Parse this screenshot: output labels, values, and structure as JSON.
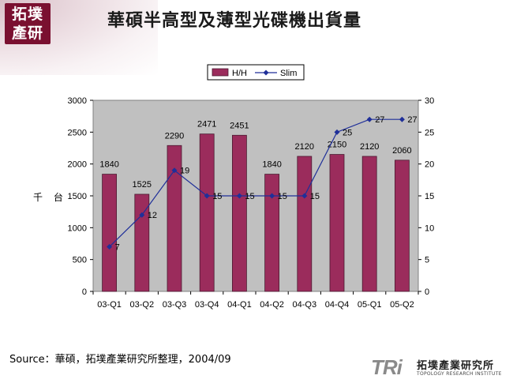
{
  "logo": {
    "line1": "拓墣",
    "line2": "產研"
  },
  "title": "華碩半高型及薄型光碟機出貨量",
  "footer": {
    "source": "Source：華碩，拓墣產業研究所整理，2004/09",
    "brand_mark": "TRi",
    "brand_cn": "拓墣產業研究所",
    "brand_en": "TOPOLOGY RESEARCH INSTITUTE"
  },
  "chart_data": {
    "type": "bar",
    "title": "",
    "xlabel": "",
    "ylabel": "千 台",
    "categories": [
      "03-Q1",
      "03-Q2",
      "03-Q3",
      "03-Q4",
      "04-Q1",
      "04-Q2",
      "04-Q3",
      "04-Q4",
      "05-Q1",
      "05-Q2"
    ],
    "series": [
      {
        "name": "H/H",
        "type": "bar",
        "axis": "left",
        "color": "#9b2c5c",
        "values": [
          1840,
          1525,
          2290,
          2471,
          2451,
          1840,
          2120,
          2150,
          2120,
          2060
        ]
      },
      {
        "name": "Slim",
        "type": "line",
        "axis": "right",
        "color": "#1f2f99",
        "values": [
          7,
          12,
          19,
          15,
          15,
          15,
          15,
          25,
          27,
          27
        ]
      }
    ],
    "ylim": [
      0,
      3000
    ],
    "yticks": [
      0,
      500,
      1000,
      1500,
      2000,
      2500,
      3000
    ],
    "y2lim": [
      0,
      30
    ],
    "y2ticks": [
      0,
      5,
      10,
      15,
      20,
      25,
      30
    ],
    "plot_background": "#c0c0c0",
    "grid": false,
    "legend_position": "top"
  }
}
